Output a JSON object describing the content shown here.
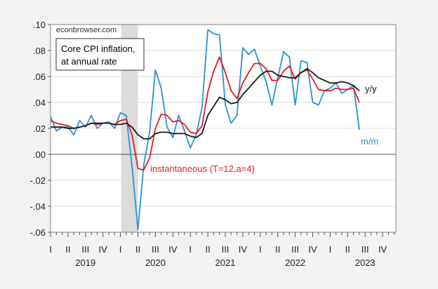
{
  "chart_data": {
    "type": "line",
    "watermark": "econbrowser.com",
    "title_lines": [
      "Core CPI inflation,",
      "at annual rate"
    ],
    "x_start": "2019-01",
    "frequency": "monthly",
    "xlim": [
      "2019-01",
      "2023-12"
    ],
    "ylim": [
      -0.06,
      0.1
    ],
    "y_ticks": [
      ".10",
      ".08",
      ".06",
      ".04",
      ".02",
      ".00",
      "-.02",
      "-.04",
      "-.06"
    ],
    "y_tick_values": [
      0.1,
      0.08,
      0.06,
      0.04,
      0.02,
      0.0,
      -0.02,
      -0.04,
      -0.06
    ],
    "x_quarter_labels": [
      "I",
      "II",
      "III",
      "IV",
      "I",
      "II",
      "III",
      "IV",
      "I",
      "II",
      "III",
      "IV",
      "I",
      "II",
      "III",
      "IV",
      "I",
      "II",
      "III",
      "IV"
    ],
    "x_year_labels": [
      "2019",
      "2020",
      "2021",
      "2022",
      "2023"
    ],
    "grid": true,
    "recession_shading": {
      "start": "2020-02",
      "end": "2020-04",
      "color": "#dcdcdc"
    },
    "series": [
      {
        "name": "m/m",
        "color": "#2a93d0",
        "values": [
          0.029,
          0.018,
          0.021,
          0.021,
          0.015,
          0.026,
          0.021,
          0.03,
          0.02,
          0.024,
          0.025,
          0.02,
          0.032,
          0.03,
          -0.01,
          -0.058,
          -0.008,
          0.017,
          0.065,
          0.051,
          0.021,
          0.013,
          0.03,
          0.018,
          0.005,
          0.015,
          0.036,
          0.096,
          0.093,
          0.092,
          0.038,
          0.024,
          0.03,
          0.082,
          0.077,
          0.081,
          0.068,
          0.056,
          0.038,
          0.059,
          0.079,
          0.075,
          0.038,
          0.072,
          0.071,
          0.04,
          0.038,
          0.049,
          0.051,
          0.055,
          0.047,
          0.05,
          0.053,
          0.019
        ]
      },
      {
        "name": "y/y",
        "color": "#1a1a1a",
        "values": [
          0.021,
          0.021,
          0.021,
          0.02,
          0.02,
          0.021,
          0.022,
          0.024,
          0.024,
          0.024,
          0.024,
          0.023,
          0.023,
          0.024,
          0.021,
          0.015,
          0.012,
          0.012,
          0.016,
          0.017,
          0.017,
          0.016,
          0.016,
          0.016,
          0.014,
          0.013,
          0.016,
          0.03,
          0.037,
          0.044,
          0.042,
          0.039,
          0.04,
          0.046,
          0.051,
          0.056,
          0.061,
          0.064,
          0.064,
          0.061,
          0.06,
          0.059,
          0.059,
          0.063,
          0.066,
          0.063,
          0.059,
          0.057,
          0.055,
          0.055,
          0.056,
          0.055,
          0.053,
          0.049
        ]
      },
      {
        "name": "instantaneous (T=12,a=4)",
        "color": "#e41a1c",
        "values": [
          0.026,
          0.024,
          0.023,
          0.022,
          0.02,
          0.021,
          0.022,
          0.024,
          0.023,
          0.024,
          0.024,
          0.023,
          0.026,
          0.027,
          0.015,
          -0.011,
          -0.012,
          -0.003,
          0.02,
          0.031,
          0.03,
          0.025,
          0.026,
          0.023,
          0.017,
          0.016,
          0.022,
          0.048,
          0.064,
          0.075,
          0.063,
          0.049,
          0.043,
          0.055,
          0.063,
          0.07,
          0.07,
          0.066,
          0.057,
          0.057,
          0.064,
          0.068,
          0.058,
          0.063,
          0.065,
          0.058,
          0.05,
          0.049,
          0.049,
          0.051,
          0.05,
          0.05,
          0.051,
          0.04
        ]
      }
    ]
  }
}
